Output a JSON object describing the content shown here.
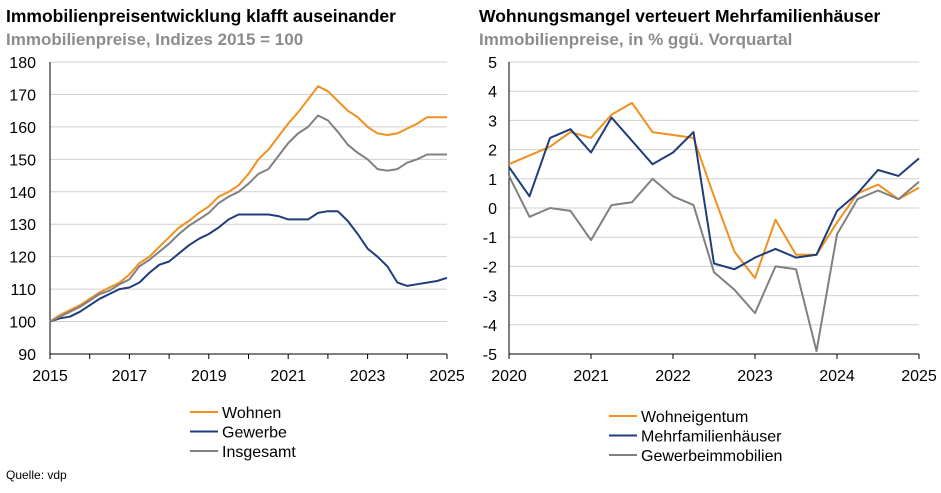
{
  "source": "Quelle: vdp",
  "chart_data": [
    {
      "type": "line",
      "title": "Immobilienpreisentwicklung klafft auseinander",
      "subtitle": "Immobilienpreise, Indizes 2015 = 100",
      "xlim": [
        2015,
        2025
      ],
      "ylim": [
        90,
        180
      ],
      "yticks": [
        90,
        100,
        110,
        120,
        130,
        140,
        150,
        160,
        170,
        180
      ],
      "xticks": [
        2015,
        2017,
        2019,
        2021,
        2023,
        2025
      ],
      "legend": "bottom",
      "grid": "horizontal",
      "colors": [
        "#f0901e",
        "#1f3d7a",
        "#808080"
      ],
      "x": [
        2015,
        2015.25,
        2015.5,
        2015.75,
        2016,
        2016.25,
        2016.5,
        2016.75,
        2017,
        2017.25,
        2017.5,
        2017.75,
        2018,
        2018.25,
        2018.5,
        2018.75,
        2019,
        2019.25,
        2019.5,
        2019.75,
        2020,
        2020.25,
        2020.5,
        2020.75,
        2021,
        2021.25,
        2021.5,
        2021.75,
        2022,
        2022.25,
        2022.5,
        2022.75,
        2023,
        2023.25,
        2023.5,
        2023.75,
        2024,
        2024.25,
        2024.5,
        2024.75,
        2025
      ],
      "series": [
        {
          "name": "Wohnen",
          "values": [
            100,
            102,
            103.5,
            105,
            107,
            109,
            110.5,
            112,
            114.5,
            118,
            120,
            123,
            126,
            129,
            131,
            133.5,
            135.5,
            138.5,
            140,
            142,
            145.5,
            150,
            153,
            157,
            161,
            164.5,
            168.5,
            172.5,
            171,
            168,
            165,
            163,
            160,
            158,
            157.5,
            158,
            159.5,
            161,
            163,
            163,
            163
          ]
        },
        {
          "name": "Gewerbe",
          "values": [
            100,
            101,
            101.5,
            103,
            105,
            107,
            108.5,
            110,
            110.5,
            112,
            115,
            117.5,
            118.5,
            121,
            123.5,
            125.5,
            127,
            129,
            131.5,
            133,
            133,
            133,
            133,
            132.5,
            131.5,
            131.5,
            131.5,
            133.5,
            134,
            134,
            131,
            127,
            122.5,
            120,
            117,
            112,
            111,
            111.5,
            112,
            112.5,
            113.5
          ]
        },
        {
          "name": "Insgesamt",
          "values": [
            100,
            101.5,
            103,
            104.5,
            106.5,
            108.5,
            109.5,
            111.5,
            113,
            117,
            119,
            121.5,
            124,
            127,
            129.5,
            131.5,
            133.5,
            136.5,
            138.5,
            140,
            142.5,
            145.5,
            147,
            151,
            155,
            158,
            160,
            163.5,
            162,
            158.5,
            154.5,
            152,
            150,
            147,
            146.5,
            147,
            149,
            150,
            151.5,
            151.5,
            151.5
          ]
        }
      ]
    },
    {
      "type": "line",
      "title": "Wohnungsmangel verteuert Mehrfamilienhäuser",
      "subtitle": "Immobilienpreise, in % ggü. Vorquartal",
      "xlim": [
        2020,
        2025
      ],
      "ylim": [
        -5,
        5
      ],
      "yticks": [
        -5,
        -4,
        -3,
        -2,
        -1,
        0,
        1,
        2,
        3,
        4,
        5
      ],
      "xticks": [
        2020,
        2021,
        2022,
        2023,
        2024,
        2025
      ],
      "legend": "bottom",
      "grid": "horizontal",
      "colors": [
        "#f0901e",
        "#1f3d7a",
        "#808080"
      ],
      "x": [
        2020,
        2020.25,
        2020.5,
        2020.75,
        2021,
        2021.25,
        2021.5,
        2021.75,
        2022,
        2022.25,
        2022.5,
        2022.75,
        2023,
        2023.25,
        2023.5,
        2023.75,
        2024,
        2024.25,
        2024.5,
        2024.75,
        2025
      ],
      "series": [
        {
          "name": "Wohneigentum",
          "values": [
            1.5,
            1.8,
            2.1,
            2.6,
            2.4,
            3.2,
            3.6,
            2.6,
            2.5,
            2.4,
            0.4,
            -1.5,
            -2.4,
            -0.4,
            -1.6,
            -1.6,
            -0.5,
            0.5,
            0.8,
            0.3,
            0.7
          ]
        },
        {
          "name": "Mehrfamilienhäuser",
          "values": [
            1.4,
            0.4,
            2.4,
            2.7,
            1.9,
            3.1,
            2.3,
            1.5,
            1.9,
            2.6,
            -1.9,
            -2.1,
            -1.7,
            -1.4,
            -1.7,
            -1.6,
            -0.1,
            0.5,
            1.3,
            1.1,
            1.7
          ]
        },
        {
          "name": "Gewerbeimmobilien",
          "values": [
            1.1,
            -0.3,
            0.0,
            -0.1,
            -1.1,
            0.1,
            0.2,
            1.0,
            0.4,
            0.1,
            -2.2,
            -2.8,
            -3.6,
            -2.0,
            -2.1,
            -4.9,
            -0.9,
            0.3,
            0.6,
            0.3,
            0.9
          ]
        }
      ]
    }
  ]
}
